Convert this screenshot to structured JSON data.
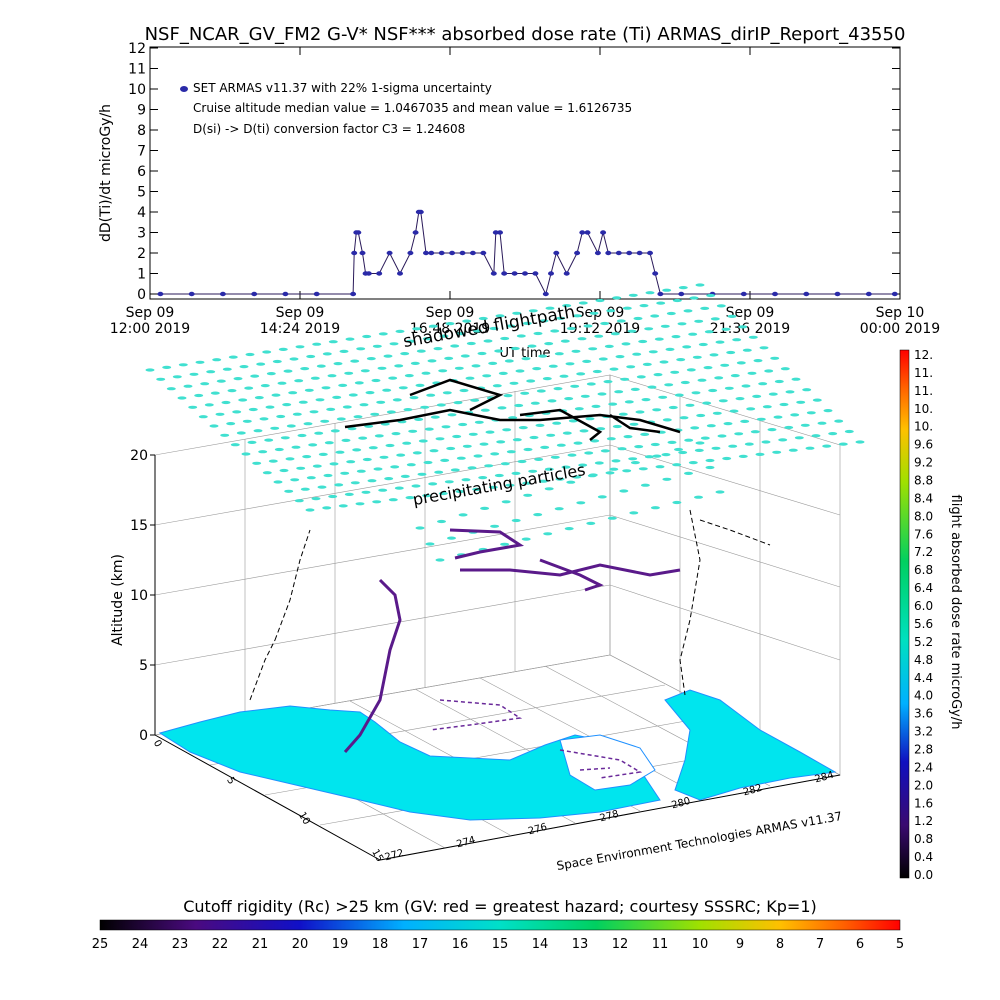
{
  "title": "NSF_NCAR_GV_FM2 G-V* NSF*** absorbed dose rate (Ti) ARMAS_dirIP_Report_43550",
  "top_chart": {
    "ylabel": "dD(Ti)/dt microGy/h",
    "xlabel": "UT time",
    "legend": {
      "series_label": "SET ARMAS v11.37 with 22% 1-sigma uncertainty",
      "median_text": "Cruise altitude median value = 1.0467035 and mean value = 1.6126735",
      "conversion_text": "D(si) -> D(ti) conversion factor C3 = 1.24608"
    },
    "x_ticks": [
      {
        "line1": "Sep 09",
        "line2": "12:00 2019"
      },
      {
        "line1": "Sep 09",
        "line2": "14:24 2019"
      },
      {
        "line1": "Sep 09",
        "line2": "16:48 2019"
      },
      {
        "line1": "Sep 09",
        "line2": "19:12 2019"
      },
      {
        "line1": "Sep 09",
        "line2": "21:36 2019"
      },
      {
        "line1": "Sep 10",
        "line2": "00:00 2019"
      }
    ],
    "y_ticks": [
      "0",
      "1",
      "2",
      "3",
      "4",
      "5",
      "6",
      "7",
      "8",
      "9",
      "10",
      "11",
      "12"
    ]
  },
  "chart_data": [
    {
      "type": "scatter",
      "title": "NSF_NCAR_GV_FM2 G-V* NSF*** absorbed dose rate (Ti) ARMAS_dirIP_Report_43550",
      "xlabel": "UT time",
      "ylabel": "dD(Ti)/dt microGy/h",
      "xlim": [
        "2019-09-09T12:00",
        "2019-09-10T00:00"
      ],
      "ylim": [
        0,
        12
      ],
      "x_tick_labels": [
        "Sep 09 12:00 2019",
        "Sep 09 14:24 2019",
        "Sep 09 16:48 2019",
        "Sep 09 19:12 2019",
        "Sep 09 21:36 2019",
        "Sep 10 00:00 2019"
      ],
      "series": [
        {
          "name": "SET ARMAS v11.37 with 22% 1-sigma uncertainty",
          "color": "#2a2aa8",
          "x": [
            "12:10",
            "12:40",
            "13:10",
            "13:40",
            "14:10",
            "14:40",
            "15:15",
            "15:16",
            "15:18",
            "15:20",
            "15:24",
            "15:27",
            "15:30",
            "15:40",
            "15:50",
            "16:00",
            "16:10",
            "16:15",
            "16:18",
            "16:20",
            "16:25",
            "16:30",
            "16:40",
            "16:50",
            "17:00",
            "17:10",
            "17:20",
            "17:30",
            "17:32",
            "17:36",
            "17:40",
            "17:50",
            "18:00",
            "18:10",
            "18:20",
            "18:25",
            "18:30",
            "18:40",
            "18:50",
            "18:55",
            "19:00",
            "19:10",
            "19:15",
            "19:20",
            "19:30",
            "19:40",
            "19:50",
            "20:00",
            "20:05",
            "20:10",
            "20:30",
            "21:00",
            "21:30",
            "22:00",
            "22:30",
            "23:00",
            "23:30",
            "23:55"
          ],
          "y": [
            0,
            0,
            0,
            0,
            0,
            0,
            0,
            2,
            3,
            3,
            2,
            1,
            1,
            1,
            2,
            1,
            2,
            3,
            4,
            4,
            2,
            2,
            2,
            2,
            2,
            2,
            2,
            1,
            3,
            3,
            1,
            1,
            1,
            1,
            0,
            1,
            2,
            1,
            2,
            3,
            3,
            2,
            3,
            2,
            2,
            2,
            2,
            2,
            1,
            0,
            0,
            0,
            0,
            0,
            0,
            0,
            0,
            0
          ]
        }
      ]
    },
    {
      "type": "scatter",
      "title": "shadowed flightpath",
      "subtitle": "precipitating particles",
      "zlabel": "Altitude (km)",
      "z_ticks": [
        0,
        5,
        10,
        15,
        20
      ],
      "x_ticks": [
        272,
        274,
        276,
        278,
        280,
        282,
        284
      ],
      "y_ticks": [
        0,
        5,
        10,
        15
      ],
      "footer": "Space Environment Technologies ARMAS v11.37",
      "colorbar_label": "flight absorbed dose rate microGy/h",
      "colorbar_ticks": [
        "12.",
        "11.",
        "11.",
        "10.",
        "10.",
        "9.6",
        "9.2",
        "8.8",
        "8.4",
        "8.0",
        "7.6",
        "7.2",
        "6.8",
        "6.4",
        "6.0",
        "5.6",
        "5.2",
        "4.8",
        "4.4",
        "4.0",
        "3.6",
        "3.2",
        "2.8",
        "2.4",
        "2.0",
        "1.6",
        "1.2",
        "0.8",
        "0.4",
        "0.0"
      ],
      "rigidity_label": "Cutoff rigidity (Rc) >25 km (GV: red = greatest hazard; courtesy SSSRC; Kp=1)",
      "rigidity_ticks": [
        "25",
        "24",
        "23",
        "22",
        "21",
        "20",
        "19",
        "18",
        "17",
        "16",
        "15",
        "14",
        "13",
        "12",
        "11",
        "10",
        "9",
        "8",
        "7",
        "6",
        "5"
      ]
    }
  ],
  "three_d": {
    "title": "shadowed flightpath",
    "subtitle": "precipitating particles",
    "zlabel": "Altitude (km)",
    "z_ticks": [
      "0",
      "5",
      "10",
      "15",
      "20"
    ],
    "x_ticks": [
      "272",
      "274",
      "276",
      "278",
      "280",
      "282",
      "284"
    ],
    "y_ticks": [
      "0",
      "5",
      "10",
      "15"
    ],
    "footer": "Space Environment Technologies ARMAS v11.37"
  },
  "colorbar": {
    "label": "flight absorbed dose rate microGy/h",
    "ticks": [
      "12.",
      "11.",
      "11.",
      "10.",
      "10.",
      "9.6",
      "9.2",
      "8.8",
      "8.4",
      "8.0",
      "7.6",
      "7.2",
      "6.8",
      "6.4",
      "6.0",
      "5.6",
      "5.2",
      "4.8",
      "4.4",
      "4.0",
      "3.6",
      "3.2",
      "2.8",
      "2.4",
      "2.0",
      "1.6",
      "1.2",
      "0.8",
      "0.4",
      "0.0"
    ]
  },
  "rigidity_bar": {
    "label": "Cutoff rigidity (Rc) >25 km (GV: red = greatest hazard; courtesy SSSRC; Kp=1)",
    "ticks": [
      "25",
      "24",
      "23",
      "22",
      "21",
      "20",
      "19",
      "18",
      "17",
      "16",
      "15",
      "14",
      "13",
      "12",
      "11",
      "10",
      "9",
      "8",
      "7",
      "6",
      "5"
    ]
  },
  "colors": {
    "marker": "#2a2aa8",
    "particles": "#40e0d0",
    "land": "#00e5ee",
    "land_edge": "#1e90ff",
    "flight_track": "#5a1a8a"
  }
}
